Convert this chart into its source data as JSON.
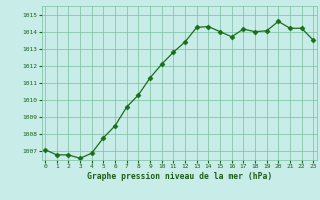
{
  "x": [
    0,
    1,
    2,
    3,
    4,
    5,
    6,
    7,
    8,
    9,
    10,
    11,
    12,
    13,
    14,
    15,
    16,
    17,
    18,
    19,
    20,
    21,
    22,
    23
  ],
  "y": [
    1007.1,
    1006.8,
    1006.8,
    1006.6,
    1006.9,
    1007.8,
    1008.5,
    1009.6,
    1010.3,
    1011.3,
    1012.1,
    1012.8,
    1013.4,
    1014.25,
    1014.3,
    1014.0,
    1013.7,
    1014.15,
    1014.0,
    1014.05,
    1014.6,
    1014.2,
    1014.2,
    1013.5
  ],
  "line_color": "#1a6e1a",
  "marker_color": "#1a6e1a",
  "bg_color": "#c8ece8",
  "grid_color": "#7abfa0",
  "xlabel": "Graphe pression niveau de la mer (hPa)",
  "xlabel_color": "#1a5e1a",
  "tick_color": "#1a5e1a",
  "ylim": [
    1006.5,
    1015.5
  ],
  "yticks": [
    1007,
    1008,
    1009,
    1010,
    1011,
    1012,
    1013,
    1014,
    1015
  ],
  "xticks": [
    0,
    1,
    2,
    3,
    4,
    5,
    6,
    7,
    8,
    9,
    10,
    11,
    12,
    13,
    14,
    15,
    16,
    17,
    18,
    19,
    20,
    21,
    22,
    23
  ],
  "xlim": [
    -0.3,
    23.3
  ]
}
